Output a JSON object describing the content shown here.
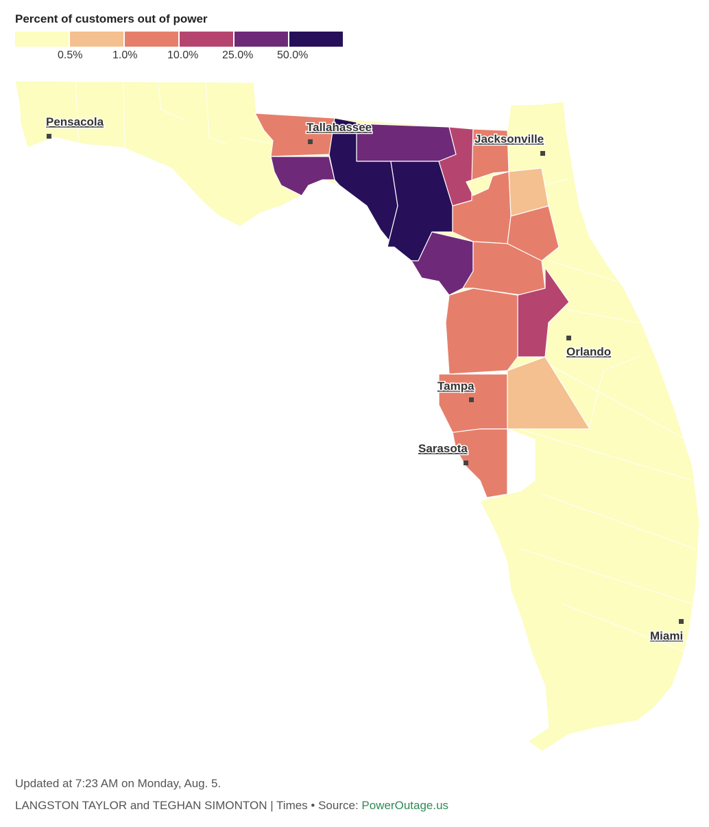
{
  "legend": {
    "title": "Percent of customers out of power",
    "bins": [
      {
        "color": "#fcfdbf",
        "label": ""
      },
      {
        "color": "#f4c08f",
        "label": "0.5%"
      },
      {
        "color": "#e57f6b",
        "label": "1.0%"
      },
      {
        "color": "#b5456f",
        "label": "10.0%"
      },
      {
        "color": "#6e2a78",
        "label": "25.0%"
      },
      {
        "color": "#271059",
        "label": "50.0%"
      }
    ]
  },
  "cities": {
    "pensacola": "Pensacola",
    "tallahassee": "Tallahassee",
    "jacksonville": "Jacksonville",
    "orlando": "Orlando",
    "tampa": "Tampa",
    "sarasota": "Sarasota",
    "miami": "Miami"
  },
  "colors": {
    "low": "#fcfdbf",
    "light": "#f4c08f",
    "medium": "#e57f6b",
    "high": "#b5456f",
    "very_high": "#6e2a78",
    "extreme": "#271059",
    "border": "#ffffff",
    "marker": "#444444"
  },
  "footer": {
    "updated": "Updated at 7:23 AM on Monday, Aug. 5.",
    "credit": "LANGSTON TAYLOR and TEGHAN SIMONTON | Times • Source: ",
    "source": "PowerOutage.us"
  }
}
